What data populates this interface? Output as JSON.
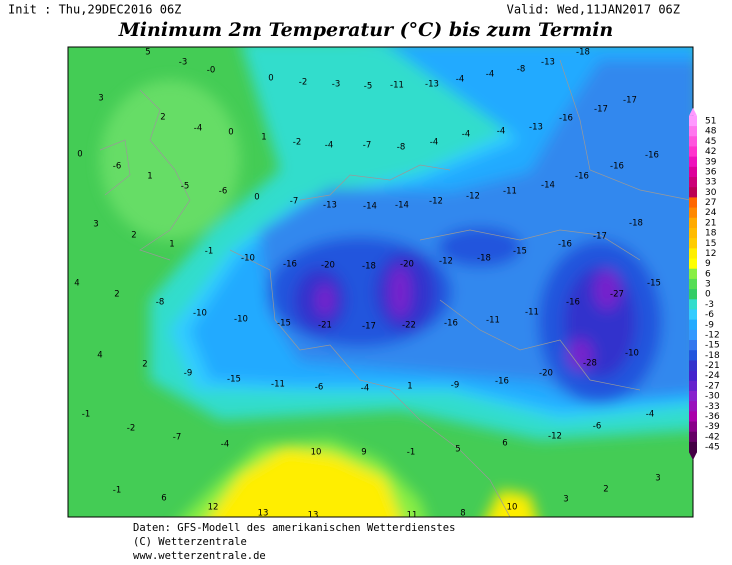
{
  "header": {
    "init": "Init : Thu,29DEC2016 06Z",
    "valid": "Valid: Wed,11JAN2017 06Z"
  },
  "title": "Minimum 2m Temperatur (°C) bis zum Termin",
  "map_labels": [
    "5",
    "-3",
    "-0",
    "3",
    "0",
    "-2",
    "-3",
    "-5",
    "-11",
    "-13",
    "-4",
    "-4",
    "-8",
    "-13",
    "-18",
    "2",
    "-4",
    "0",
    "1",
    "-2",
    "-4",
    "-7",
    "-8",
    "-4",
    "-4",
    "-4",
    "-13",
    "-16",
    "-17",
    "-17",
    "0",
    "-6",
    "1",
    "-5",
    "-6",
    "0",
    "-7",
    "-13",
    "-14",
    "-14",
    "-12",
    "-12",
    "-11",
    "-14",
    "-16",
    "-16",
    "-16",
    "3",
    "2",
    "1",
    "-1",
    "-10",
    "-16",
    "-20",
    "-18",
    "-20",
    "-12",
    "-18",
    "-15",
    "-16",
    "-17",
    "-18",
    "4",
    "2",
    "-8",
    "-10",
    "-10",
    "-15",
    "-21",
    "-17",
    "-22",
    "-16",
    "-11",
    "-11",
    "-16",
    "-27",
    "-15",
    "4",
    "2",
    "-9",
    "-15",
    "-11",
    "-6",
    "-4",
    "1",
    "-9",
    "-16",
    "-20",
    "-28",
    "-10",
    "-1",
    "-2",
    "-7",
    "-4",
    "10",
    "9",
    "-1",
    "5",
    "6",
    "-12",
    "-6",
    "-4",
    "-1",
    "6",
    "12",
    "13",
    "13",
    "11",
    "8",
    "10",
    "3",
    "2",
    "3"
  ],
  "colorbar": {
    "labels": [
      51,
      48,
      45,
      42,
      39,
      36,
      33,
      30,
      27,
      24,
      21,
      18,
      15,
      12,
      9,
      6,
      3,
      0,
      -3,
      -6,
      -9,
      -12,
      -15,
      -18,
      -21,
      -24,
      -27,
      -30,
      -33,
      -36,
      -39,
      -42,
      -45
    ],
    "colors": [
      "#ff99ff",
      "#ff77ee",
      "#ff55dd",
      "#ff33cc",
      "#ee11bb",
      "#dd0099",
      "#cc0077",
      "#bb0055",
      "#ff6600",
      "#ff8800",
      "#ffaa00",
      "#ffbb00",
      "#ffcc00",
      "#ffee00",
      "#ffff00",
      "#88ee44",
      "#55dd55",
      "#33cc66",
      "#33ddcc",
      "#33ccff",
      "#22aaff",
      "#3399ff",
      "#3377ee",
      "#2255dd",
      "#3333cc",
      "#4422cc",
      "#6622cc",
      "#8822cc",
      "#9911bb",
      "#aa00aa",
      "#880088",
      "#660066",
      "#440044"
    ]
  },
  "footer": [
    "Daten: GFS-Modell des amerikanischen Wetterdienstes",
    "(C) Wetterzentrale",
    "www.wetterzentrale.de"
  ]
}
